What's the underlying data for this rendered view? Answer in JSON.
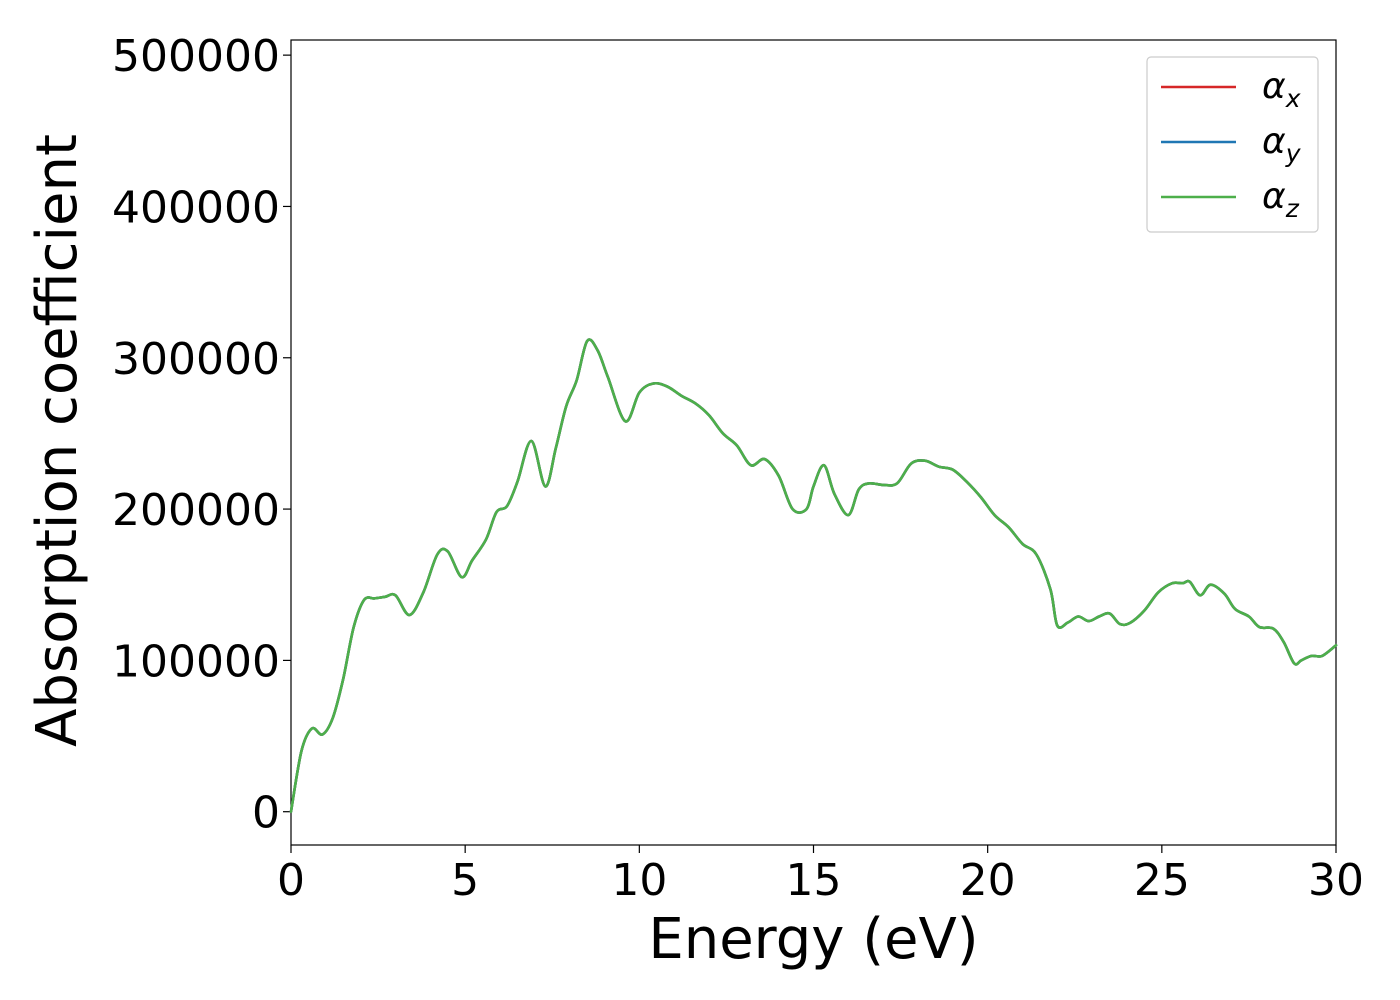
{
  "chart_data": {
    "type": "line",
    "title": "",
    "xlabel": "Energy (eV)",
    "ylabel": "Absorption coefficient",
    "xlim": [
      0,
      30
    ],
    "ylim": [
      -22000,
      510000
    ],
    "xticks": [
      0,
      5,
      10,
      15,
      20,
      25,
      30
    ],
    "xtick_labels": [
      "0",
      "5",
      "10",
      "15",
      "20",
      "25",
      "30"
    ],
    "yticks": [
      0,
      100000,
      200000,
      300000,
      400000,
      500000
    ],
    "ytick_labels": [
      "0",
      "100000",
      "200000",
      "300000",
      "400000",
      "500000"
    ],
    "grid": false,
    "legend_position": "top-right",
    "x": [
      0,
      0.3,
      0.6,
      0.9,
      1.2,
      1.5,
      1.8,
      2.1,
      2.4,
      2.7,
      3.0,
      3.4,
      3.8,
      4.2,
      4.5,
      4.9,
      5.2,
      5.6,
      5.9,
      6.2,
      6.5,
      6.9,
      7.3,
      7.6,
      7.9,
      8.2,
      8.5,
      8.8,
      9.1,
      9.6,
      10.0,
      10.4,
      10.8,
      11.2,
      11.6,
      12.0,
      12.4,
      12.8,
      13.2,
      13.6,
      14.0,
      14.4,
      14.8,
      15.0,
      15.3,
      15.6,
      16.0,
      16.3,
      16.6,
      17.0,
      17.4,
      17.8,
      18.2,
      18.6,
      19.0,
      19.4,
      19.8,
      20.2,
      20.6,
      21.0,
      21.4,
      21.8,
      22.0,
      22.3,
      22.6,
      22.9,
      23.2,
      23.5,
      23.8,
      24.1,
      24.5,
      24.9,
      25.3,
      25.6,
      25.8,
      26.1,
      26.4,
      26.8,
      27.1,
      27.5,
      27.8,
      28.2,
      28.5,
      28.8,
      29.0,
      29.3,
      29.6,
      30.0
    ],
    "series": [
      {
        "name": "α_x",
        "color": "#d62728",
        "values": [
          0,
          40000,
          55000,
          51000,
          62000,
          88000,
          122000,
          140000,
          141000,
          142000,
          143000,
          130000,
          145000,
          170000,
          172000,
          155000,
          166000,
          180000,
          198000,
          202000,
          218000,
          245000,
          215000,
          240000,
          268000,
          285000,
          311000,
          305000,
          287000,
          258000,
          277000,
          283000,
          281000,
          275000,
          270000,
          262000,
          250000,
          242000,
          229000,
          233000,
          222000,
          200000,
          200000,
          215000,
          229000,
          210000,
          196000,
          213000,
          217000,
          216000,
          217000,
          230000,
          232000,
          228000,
          226000,
          218000,
          208000,
          196000,
          188000,
          177000,
          170000,
          147000,
          123000,
          125000,
          129000,
          126000,
          129000,
          131000,
          124000,
          125000,
          133000,
          145000,
          151000,
          151000,
          152000,
          143000,
          150000,
          144000,
          134000,
          129000,
          122000,
          121000,
          112000,
          98000,
          100000,
          103000,
          103000,
          110000
        ]
      },
      {
        "name": "α_y",
        "color": "#1f77b4",
        "values": [
          0,
          40000,
          55000,
          51000,
          62000,
          88000,
          122000,
          140000,
          141000,
          142000,
          143000,
          130000,
          145000,
          170000,
          172000,
          155000,
          166000,
          180000,
          198000,
          202000,
          218000,
          245000,
          215000,
          240000,
          268000,
          285000,
          311000,
          305000,
          287000,
          258000,
          277000,
          283000,
          281000,
          275000,
          270000,
          262000,
          250000,
          242000,
          229000,
          233000,
          222000,
          200000,
          200000,
          215000,
          229000,
          210000,
          196000,
          213000,
          217000,
          216000,
          217000,
          230000,
          232000,
          228000,
          226000,
          218000,
          208000,
          196000,
          188000,
          177000,
          170000,
          147000,
          123000,
          125000,
          129000,
          126000,
          129000,
          131000,
          124000,
          125000,
          133000,
          145000,
          151000,
          151000,
          152000,
          143000,
          150000,
          144000,
          134000,
          129000,
          122000,
          121000,
          112000,
          98000,
          100000,
          103000,
          103000,
          110000
        ]
      },
      {
        "name": "α_z",
        "color": "#4daf4a",
        "values": [
          0,
          40000,
          55000,
          51000,
          62000,
          88000,
          122000,
          140000,
          141000,
          142000,
          143000,
          130000,
          145000,
          170000,
          172000,
          155000,
          166000,
          180000,
          198000,
          202000,
          218000,
          245000,
          215000,
          240000,
          268000,
          285000,
          311000,
          305000,
          287000,
          258000,
          277000,
          283000,
          281000,
          275000,
          270000,
          262000,
          250000,
          242000,
          229000,
          233000,
          222000,
          200000,
          200000,
          215000,
          229000,
          210000,
          196000,
          213000,
          217000,
          216000,
          217000,
          230000,
          232000,
          228000,
          226000,
          218000,
          208000,
          196000,
          188000,
          177000,
          170000,
          147000,
          123000,
          125000,
          129000,
          126000,
          129000,
          131000,
          124000,
          125000,
          133000,
          145000,
          151000,
          151000,
          152000,
          143000,
          150000,
          144000,
          134000,
          129000,
          122000,
          121000,
          112000,
          98000,
          100000,
          103000,
          103000,
          110000
        ]
      }
    ],
    "legend": [
      {
        "symbol": "α",
        "subscript": "x",
        "color": "#d62728"
      },
      {
        "symbol": "α",
        "subscript": "y",
        "color": "#1f77b4"
      },
      {
        "symbol": "α",
        "subscript": "z",
        "color": "#4daf4a"
      }
    ]
  }
}
